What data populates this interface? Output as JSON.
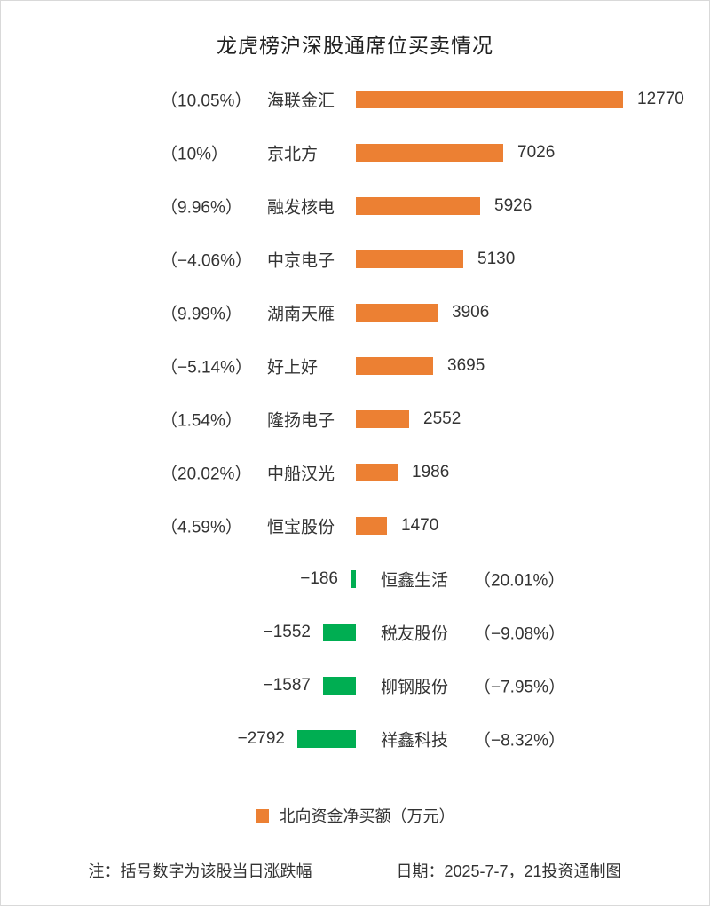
{
  "title": "龙虎榜沪深股通席位买卖情况",
  "legend": {
    "label": "北向资金净买额（万元）"
  },
  "footer": {
    "note": "注：括号数字为该股当日涨跌幅",
    "date": "日期：2025-7-7，21投资通制图"
  },
  "colors": {
    "positive": "#EC8033",
    "negative": "#00AE52",
    "text": "#333333"
  },
  "chart_data": {
    "type": "bar",
    "orientation": "horizontal-diverging",
    "title": "龙虎榜沪深股通席位买卖情况",
    "value_axis_label": "北向资金净买额（万元）",
    "xlim": [
      -2792,
      12770
    ],
    "grid": false,
    "legend_position": "bottom-center",
    "rows": [
      {
        "name": "海联金汇",
        "pct_label": "（10.05%）",
        "change_pct": 10.05,
        "value": 12770,
        "value_label": "12770"
      },
      {
        "name": "京北方",
        "pct_label": "（10%）",
        "change_pct": 10,
        "value": 7026,
        "value_label": "7026"
      },
      {
        "name": "融发核电",
        "pct_label": "（9.96%）",
        "change_pct": 9.96,
        "value": 5926,
        "value_label": "5926"
      },
      {
        "name": "中京电子",
        "pct_label": "（−4.06%）",
        "change_pct": -4.06,
        "value": 5130,
        "value_label": "5130"
      },
      {
        "name": "湖南天雁",
        "pct_label": "（9.99%）",
        "change_pct": 9.99,
        "value": 3906,
        "value_label": "3906"
      },
      {
        "name": "好上好",
        "pct_label": "（−5.14%）",
        "change_pct": -5.14,
        "value": 3695,
        "value_label": "3695"
      },
      {
        "name": "隆扬电子",
        "pct_label": "（1.54%）",
        "change_pct": 1.54,
        "value": 2552,
        "value_label": "2552"
      },
      {
        "name": "中船汉光",
        "pct_label": "（20.02%）",
        "change_pct": 20.02,
        "value": 1986,
        "value_label": "1986"
      },
      {
        "name": "恒宝股份",
        "pct_label": "（4.59%）",
        "change_pct": 4.59,
        "value": 1470,
        "value_label": "1470"
      },
      {
        "name": "恒鑫生活",
        "pct_label": "（20.01%）",
        "change_pct": 20.01,
        "value": -186,
        "value_label": "−186"
      },
      {
        "name": "税友股份",
        "pct_label": "（−9.08%）",
        "change_pct": -9.08,
        "value": -1552,
        "value_label": "−1552"
      },
      {
        "name": "柳钢股份",
        "pct_label": "（−7.95%）",
        "change_pct": -7.95,
        "value": -1587,
        "value_label": "−1587"
      },
      {
        "name": "祥鑫科技",
        "pct_label": "（−8.32%）",
        "change_pct": -8.32,
        "value": -2792,
        "value_label": "−2792"
      }
    ]
  }
}
